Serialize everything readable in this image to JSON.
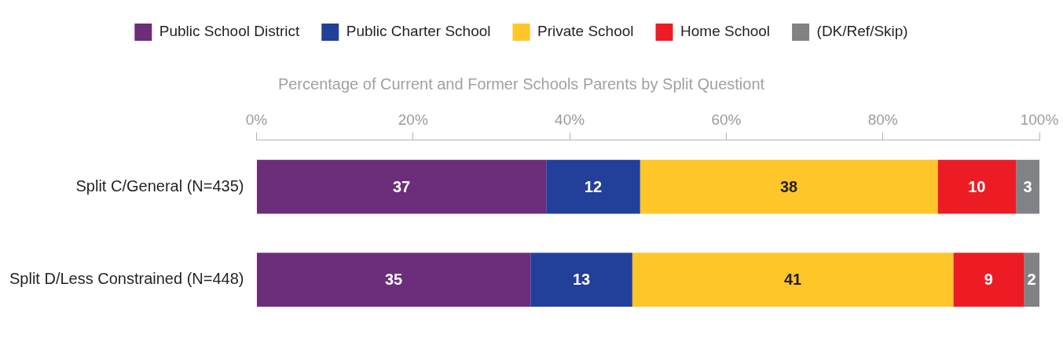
{
  "chart_data": {
    "type": "bar",
    "orientation": "horizontal",
    "stacked": true,
    "title": "Percentage of Current and Former Schools Parents by Split Questiont",
    "categories": [
      "Split C/General (N=435)",
      "Split D/Less Constrained (N=448)"
    ],
    "series": [
      {
        "name": "Public School District",
        "color": "#6c2d7b",
        "values": [
          37,
          35
        ]
      },
      {
        "name": "Public Charter School",
        "color": "#22409a",
        "values": [
          12,
          13
        ]
      },
      {
        "name": "Private School",
        "color": "#ffc629",
        "values": [
          38,
          41
        ]
      },
      {
        "name": "Home School",
        "color": "#ed1c24",
        "values": [
          10,
          9
        ]
      },
      {
        "name": "(DK/Ref/Skip)",
        "color": "#808285",
        "values": [
          3,
          2
        ]
      }
    ],
    "xlim": [
      0,
      100
    ],
    "xticks": [
      {
        "value": 0,
        "label": "0%"
      },
      {
        "value": 20,
        "label": "20%"
      },
      {
        "value": 40,
        "label": "40%"
      },
      {
        "value": 60,
        "label": "60%"
      },
      {
        "value": 80,
        "label": "80%"
      },
      {
        "value": 100,
        "label": "100%"
      }
    ],
    "data_labels": true,
    "grid": false,
    "legend": "top"
  }
}
